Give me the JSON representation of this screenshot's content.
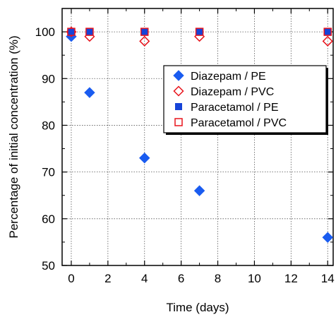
{
  "chart_data": {
    "type": "scatter",
    "xlabel": "Time (days)",
    "ylabel": "Percentage of initial concentration (%)",
    "xlim": [
      -0.5,
      14.3
    ],
    "ylim": [
      50,
      105
    ],
    "xticks": [
      0,
      2,
      4,
      6,
      8,
      10,
      12,
      14
    ],
    "yticks": [
      50,
      60,
      70,
      80,
      90,
      100
    ],
    "grid": true,
    "legend_position": "right",
    "series": [
      {
        "name": "Diazepam / PE",
        "marker": "filled-diamond",
        "color": "#1a5cf0",
        "x": [
          0,
          1,
          4,
          7,
          14
        ],
        "y": [
          99,
          87,
          73,
          66,
          56
        ]
      },
      {
        "name": "Diazepam / PVC",
        "marker": "open-diamond",
        "color": "#e8141c",
        "x": [
          0,
          1,
          4,
          7,
          14
        ],
        "y": [
          100,
          99,
          98,
          99,
          98
        ]
      },
      {
        "name": "Paracetamol / PE",
        "marker": "filled-square",
        "color": "#1644d8",
        "x": [
          0,
          1,
          4,
          7,
          14
        ],
        "y": [
          100,
          100,
          100,
          100,
          100
        ]
      },
      {
        "name": "Paracetamol / PVC",
        "marker": "open-square",
        "color": "#e8141c",
        "x": [
          0,
          1,
          4,
          7,
          14
        ],
        "y": [
          100,
          100,
          100,
          100,
          100
        ]
      }
    ]
  }
}
